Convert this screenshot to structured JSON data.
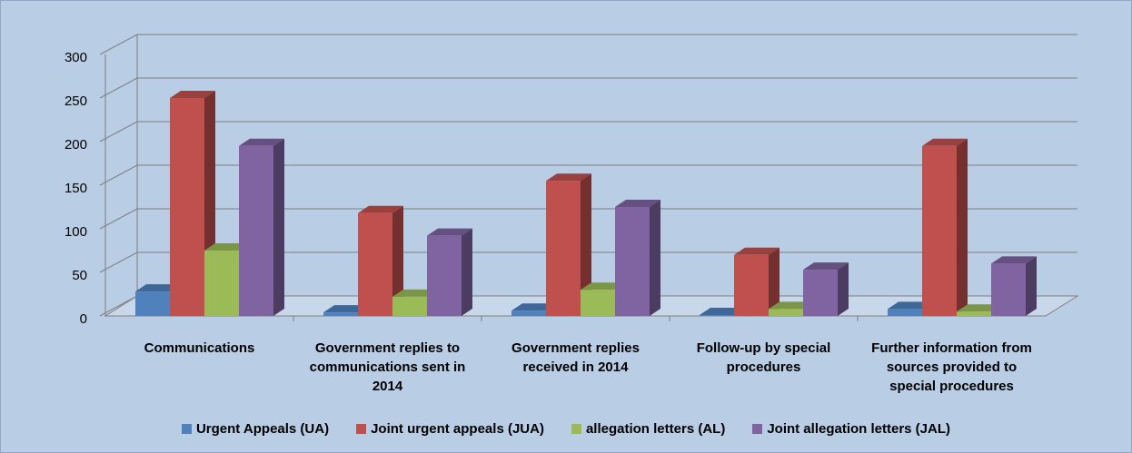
{
  "chart_data": {
    "type": "bar3d",
    "categories": [
      "Communications",
      "Government replies to communications sent in 2014",
      "Government replies received in 2014",
      "Follow-up by special procedures",
      "Further information from sources provided to special procedures"
    ],
    "series": [
      {
        "name": "Urgent Appeals (UA)",
        "color": "#4f81bd",
        "values": [
          28,
          4,
          6,
          1,
          8
        ]
      },
      {
        "name": "Joint urgent appeals (JUA)",
        "color": "#c0504d",
        "values": [
          250,
          118,
          155,
          70,
          195
        ]
      },
      {
        "name": "allegation letters (AL)",
        "color": "#9bbb59",
        "values": [
          75,
          22,
          30,
          8,
          5
        ]
      },
      {
        "name": "Joint allegation letters (JAL)",
        "color": "#8064a2",
        "values": [
          195,
          92,
          125,
          53,
          60
        ]
      }
    ],
    "ylim": [
      0,
      300
    ],
    "yticks": [
      0,
      50,
      100,
      150,
      200,
      250,
      300
    ],
    "grid": true,
    "legend": "bottom"
  }
}
